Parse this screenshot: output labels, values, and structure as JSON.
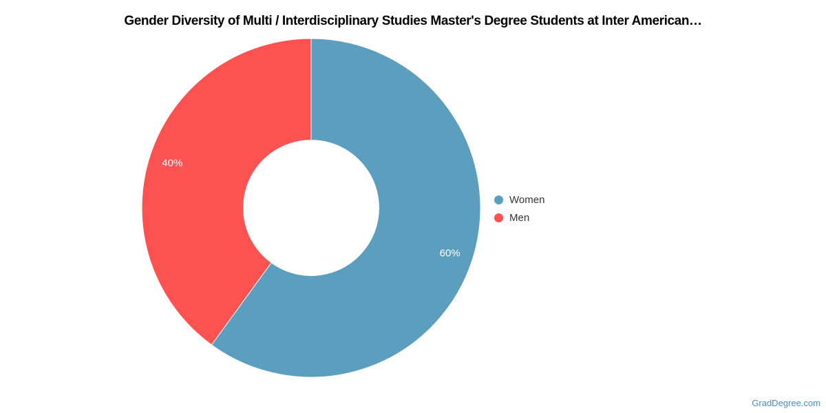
{
  "title": "Gender Diversity of Multi / Interdisciplinary Studies Master's Degree Students at Inter American…",
  "watermark": "GradDegree.com",
  "colors": {
    "background": "#ffffff",
    "title_text": "#000000",
    "legend_text": "#333333",
    "slice_label_text": "#ffffff",
    "slice_border": "#ffffff",
    "watermark_text": "#4a90b8",
    "women": "#5b9ebe",
    "men": "#fc5252"
  },
  "chart_data": {
    "type": "pie",
    "title": "Gender Diversity of Multi / Interdisciplinary Studies Master's Degree Students at Inter American…",
    "donut": true,
    "inner_radius_ratio": 0.4,
    "start_angle": 0,
    "legend_position": "right",
    "series": [
      {
        "name": "Women",
        "value": 60,
        "label": "60%",
        "color": "#5b9ebe"
      },
      {
        "name": "Men",
        "value": 40,
        "label": "40%",
        "color": "#fc5252"
      }
    ]
  }
}
